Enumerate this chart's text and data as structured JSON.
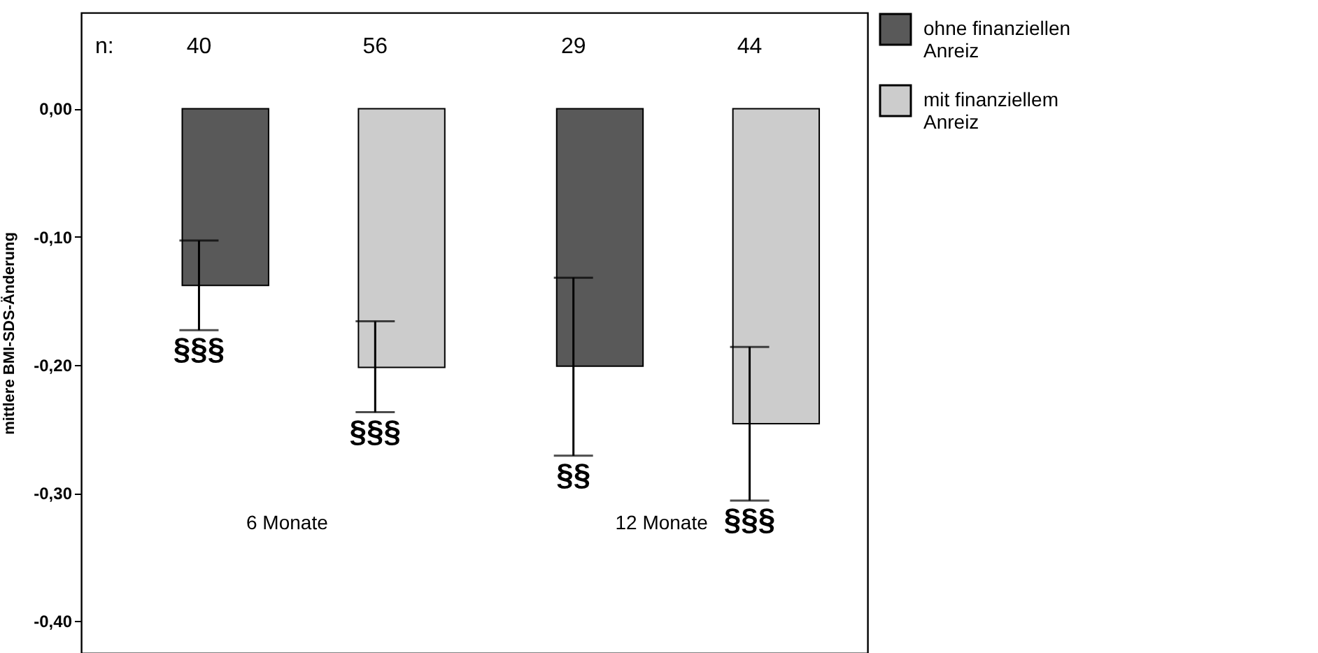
{
  "chart_data": {
    "type": "bar",
    "ylabel": "mittlere BMI-SDS-Änderung",
    "categories": [
      "6 Monate",
      "12 Monate"
    ],
    "series": [
      {
        "name": "ohne finanziellen Anreiz",
        "color": "#595959",
        "values": [
          -0.138,
          -0.201
        ],
        "errors": [
          [
            -0.173,
            -0.103
          ],
          [
            -0.271,
            -0.132
          ]
        ]
      },
      {
        "name": "mit finanziellem Anreiz",
        "color": "#cccccc",
        "values": [
          -0.202,
          -0.246
        ],
        "errors": [
          [
            -0.237,
            -0.166
          ],
          [
            -0.306,
            -0.186
          ]
        ]
      }
    ],
    "ylim": [
      -0.425,
      0.075
    ],
    "yticks": [
      {
        "value": 0,
        "label": "0,00"
      },
      {
        "value": -0.1,
        "label": "-0,10"
      },
      {
        "value": -0.2,
        "label": "-0,20"
      },
      {
        "value": -0.3,
        "label": "-0,30"
      },
      {
        "value": -0.4,
        "label": "-0,40"
      }
    ],
    "annotations": [
      "n:",
      "40",
      "56",
      "29",
      "44",
      "§§§",
      "§§§",
      "§§",
      "§§§"
    ],
    "legend": "top right",
    "grid": false
  }
}
